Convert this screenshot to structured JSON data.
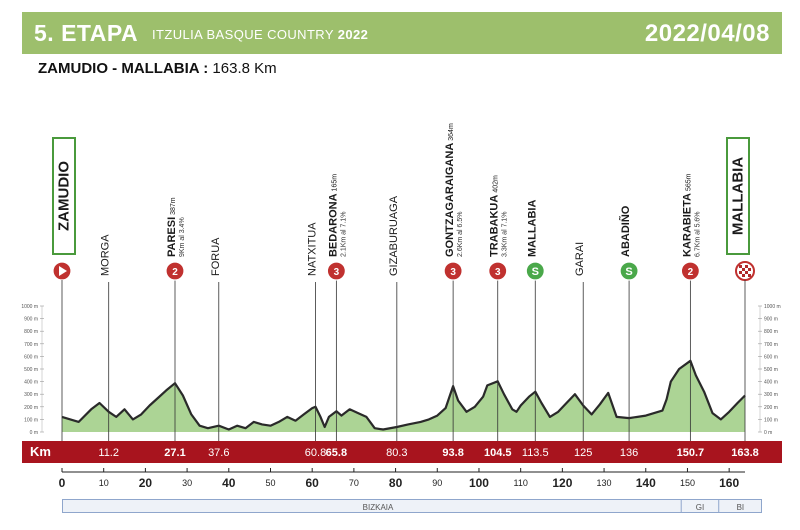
{
  "header": {
    "stage": "5. ETAPA",
    "race_name": "ITZULIA BASQUE COUNTRY",
    "race_year": "2022",
    "date": "2022/04/08"
  },
  "route": {
    "cities": "ZAMUDIO - MALLABIA :",
    "distance": "163.8 Km"
  },
  "start_label": "ZAMUDIO",
  "finish_label": "MALLABIA",
  "km_bar_label": "Km",
  "regions": [
    "BIZKAIA",
    "GI",
    "BI"
  ],
  "colors": {
    "header_bg": "#9dbf6c",
    "km_bar": "#a8141e",
    "profile_fill": "#7fbd5c",
    "profile_line": "#2a2a2a",
    "climb_badge": "#c0312f",
    "sprint_badge": "#4aa84a"
  },
  "chart_data": {
    "type": "area",
    "title": "",
    "xlabel": "",
    "ylabel": "",
    "xlim": [
      0,
      163.8
    ],
    "ylim": [
      0,
      1000
    ],
    "x_ticks": [
      0,
      10,
      20,
      30,
      40,
      50,
      60,
      70,
      80,
      90,
      100,
      110,
      120,
      130,
      140,
      150,
      160
    ],
    "x_ticks_bold": [
      0,
      20,
      40,
      60,
      80,
      100,
      120,
      140,
      160
    ],
    "y_ticks": [
      0,
      100,
      200,
      300,
      400,
      500,
      600,
      700,
      800,
      900,
      1000
    ],
    "y_tick_suffix": " m",
    "profile": {
      "x": [
        0,
        4,
        7,
        9,
        11.2,
        13,
        15,
        17,
        19,
        21,
        23,
        25,
        27.1,
        29,
        31,
        33,
        35,
        37.6,
        40,
        42,
        44,
        46,
        48,
        50,
        52,
        54,
        56,
        58,
        60,
        60.8,
        62,
        63,
        64,
        65.8,
        67,
        69,
        71,
        73,
        75,
        77,
        80.3,
        83,
        86,
        88,
        90,
        92,
        93.8,
        95,
        97,
        99,
        101,
        102,
        104.5,
        106,
        108,
        109,
        110,
        112,
        113.5,
        115,
        117,
        119,
        121,
        123,
        125,
        127,
        129,
        131,
        133,
        136,
        140,
        144,
        145,
        146,
        148,
        150.7,
        152,
        154,
        156,
        158,
        160,
        162,
        163.8
      ],
      "elev": [
        120,
        80,
        180,
        230,
        160,
        120,
        180,
        100,
        140,
        210,
        270,
        330,
        387,
        290,
        140,
        50,
        30,
        50,
        20,
        50,
        30,
        80,
        60,
        50,
        80,
        120,
        90,
        140,
        190,
        200,
        120,
        40,
        120,
        165,
        130,
        180,
        150,
        120,
        30,
        20,
        40,
        60,
        80,
        100,
        130,
        190,
        364,
        250,
        160,
        200,
        280,
        370,
        402,
        300,
        180,
        160,
        210,
        280,
        320,
        230,
        120,
        160,
        230,
        300,
        210,
        140,
        220,
        310,
        120,
        110,
        130,
        170,
        260,
        400,
        500,
        565,
        450,
        320,
        150,
        100,
        160,
        230,
        290
      ]
    },
    "km_markers": [
      {
        "km": 11.2,
        "label": "11.2",
        "bold": false
      },
      {
        "km": 27.1,
        "label": "27.1",
        "bold": true
      },
      {
        "km": 37.6,
        "label": "37.6",
        "bold": false
      },
      {
        "km": 60.8,
        "label": "60.8",
        "bold": false
      },
      {
        "km": 65.8,
        "label": "65.8",
        "bold": true
      },
      {
        "km": 80.3,
        "label": "80.3",
        "bold": false
      },
      {
        "km": 93.8,
        "label": "93.8",
        "bold": true
      },
      {
        "km": 104.5,
        "label": "104.5",
        "bold": true
      },
      {
        "km": 113.5,
        "label": "113.5",
        "bold": false
      },
      {
        "km": 125,
        "label": "125",
        "bold": false
      },
      {
        "km": 136,
        "label": "136",
        "bold": false
      },
      {
        "km": 150.7,
        "label": "150.7",
        "bold": true
      },
      {
        "km": 163.8,
        "label": "163.8",
        "bold": true
      }
    ],
    "points": [
      {
        "km": 11.2,
        "name": "MORGA",
        "kind": "town"
      },
      {
        "km": 27.1,
        "name": "PARESI",
        "elev": "387m",
        "detail": "9Km al 3.4%",
        "kind": "climb",
        "badge": "2"
      },
      {
        "km": 37.6,
        "name": "FORUA",
        "kind": "town"
      },
      {
        "km": 60.8,
        "name": "NATXITUA",
        "kind": "town"
      },
      {
        "km": 65.8,
        "name": "BEDARONA",
        "elev": "165m",
        "detail": "2.1Km al 7.1%",
        "kind": "climb",
        "badge": "3"
      },
      {
        "km": 80.3,
        "name": "GIZABURUAGA",
        "kind": "town"
      },
      {
        "km": 93.8,
        "name": "GONTZAGARAIGANA",
        "elev": "364m",
        "detail": "2.6Km al 6.5%",
        "kind": "climb",
        "badge": "3"
      },
      {
        "km": 104.5,
        "name": "TRABAKUA",
        "elev": "402m",
        "detail": "3.3Km al 7.1%",
        "kind": "climb",
        "badge": "3"
      },
      {
        "km": 113.5,
        "name": "MALLABIA",
        "kind": "sprint",
        "badge": "S"
      },
      {
        "km": 125,
        "name": "GARAI",
        "kind": "town"
      },
      {
        "km": 136,
        "name": "ABADIÑO",
        "kind": "sprint",
        "badge": "S"
      },
      {
        "km": 150.7,
        "name": "KARABIETA",
        "elev": "565m",
        "detail": "6.7Km al 5.6%",
        "kind": "climb",
        "badge": "2"
      }
    ]
  }
}
